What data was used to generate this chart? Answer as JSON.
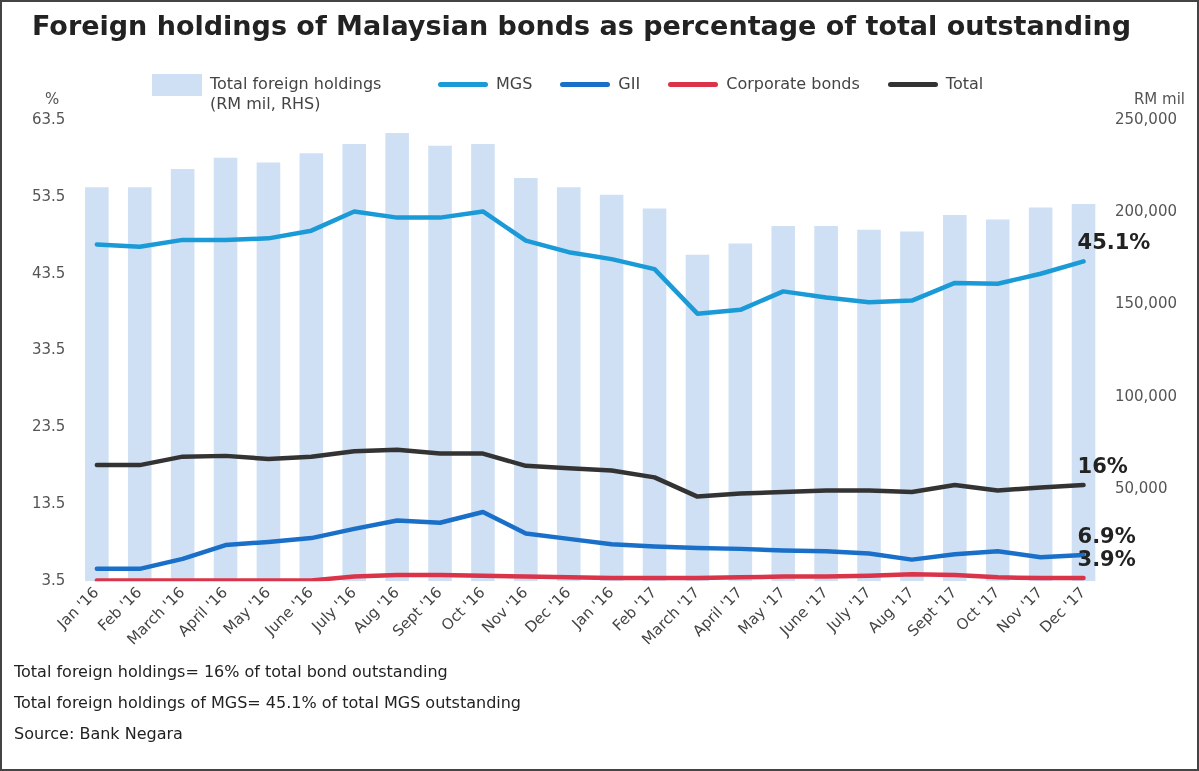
{
  "chart_data": {
    "type": "line",
    "title": "Foreign holdings of Malaysian bonds as percentage of total outstanding",
    "ylabel": "%",
    "y2label": "RM mil",
    "categories": [
      "Jan '16",
      "Feb '16",
      "March '16",
      "April '16",
      "May '16",
      "June '16",
      "July '16",
      "Aug '16",
      "Sept '16",
      "Oct '16",
      "Nov '16",
      "Dec '16",
      "Jan '16",
      "Feb '17",
      "March '17",
      "April '17",
      "May '17",
      "June '17",
      "July '17",
      "Aug '17",
      "Sept '17",
      "Oct '17",
      "Nov '17",
      "Dec '17"
    ],
    "series": [
      {
        "name": "Total foreign holdings (RM mil, RHS)",
        "type": "bar",
        "axis": "y2",
        "color": "#cfe0f5",
        "values": [
          213500,
          213500,
          223500,
          229500,
          227000,
          232000,
          237000,
          243000,
          236000,
          237000,
          218500,
          213500,
          209500,
          202000,
          177000,
          183000,
          192500,
          192500,
          190500,
          189500,
          198500,
          196000,
          202500,
          204500
        ]
      },
      {
        "name": "MGS",
        "color": "#1a9ad6",
        "values": [
          47.3,
          47.0,
          47.9,
          47.9,
          48.1,
          49.1,
          51.6,
          50.8,
          50.8,
          51.6,
          47.8,
          46.3,
          45.4,
          44.1,
          38.3,
          38.8,
          41.2,
          40.4,
          39.8,
          40.0,
          42.3,
          42.2,
          43.5,
          45.1
        ],
        "value_labels": [
          null,
          null,
          null,
          null,
          null,
          null,
          null,
          null,
          null,
          null,
          null,
          null,
          null,
          null,
          null,
          null,
          null,
          null,
          null,
          null,
          null,
          null,
          null,
          "45.1%"
        ]
      },
      {
        "name": "GII",
        "color": "#1a6fc8",
        "values": [
          5.1,
          5.1,
          6.4,
          8.2,
          8.6,
          9.1,
          10.3,
          11.4,
          11.1,
          12.5,
          9.7,
          9.0,
          8.3,
          8.0,
          7.8,
          7.7,
          7.5,
          7.4,
          7.1,
          6.3,
          7.0,
          7.4,
          6.6,
          6.9
        ],
        "value_labels": [
          null,
          null,
          null,
          null,
          null,
          null,
          null,
          null,
          null,
          null,
          null,
          null,
          null,
          null,
          null,
          null,
          null,
          null,
          null,
          null,
          null,
          null,
          null,
          "6.9%"
        ]
      },
      {
        "name": "Corporate bonds",
        "color": "#d9344a",
        "values": [
          3.6,
          3.6,
          3.6,
          3.6,
          3.6,
          3.6,
          4.1,
          4.3,
          4.3,
          4.2,
          4.1,
          4.0,
          3.9,
          3.9,
          3.9,
          4.0,
          4.1,
          4.1,
          4.2,
          4.4,
          4.3,
          4.0,
          3.9,
          3.9
        ],
        "value_labels": [
          null,
          null,
          null,
          null,
          null,
          null,
          null,
          null,
          null,
          null,
          null,
          null,
          null,
          null,
          null,
          null,
          null,
          null,
          null,
          null,
          null,
          null,
          null,
          "3.9%"
        ]
      },
      {
        "name": "Total",
        "color": "#333333",
        "values": [
          18.6,
          18.6,
          19.7,
          19.8,
          19.4,
          19.7,
          20.4,
          20.6,
          20.1,
          20.1,
          18.5,
          18.2,
          17.9,
          17.0,
          14.5,
          14.9,
          15.1,
          15.3,
          15.3,
          15.1,
          16.0,
          15.3,
          15.7,
          16
        ],
        "value_labels": [
          null,
          null,
          null,
          null,
          null,
          null,
          null,
          null,
          null,
          null,
          null,
          null,
          null,
          null,
          null,
          null,
          null,
          null,
          null,
          null,
          null,
          null,
          null,
          "16%"
        ]
      }
    ],
    "ylim": [
      3.5,
      63.5
    ],
    "yticks": [
      3.5,
      13.5,
      23.5,
      33.5,
      43.5,
      53.5,
      63.5
    ],
    "y2lim": [
      0,
      250000
    ],
    "y2ticks": [
      {
        "value": 50000,
        "label": "50,000"
      },
      {
        "value": 100000,
        "label": "100,000"
      },
      {
        "value": 150000,
        "label": "150,000"
      },
      {
        "value": 200000,
        "label": "200,000"
      },
      {
        "value": 250000,
        "label": "250,000"
      }
    ],
    "legend": "top",
    "grid": false,
    "annotations": [
      "Total foreign holdings= 16% of total bond outstanding",
      "Total foreign holdings of MGS= 45.1% of total MGS outstanding",
      "Source: Bank Negara"
    ]
  }
}
